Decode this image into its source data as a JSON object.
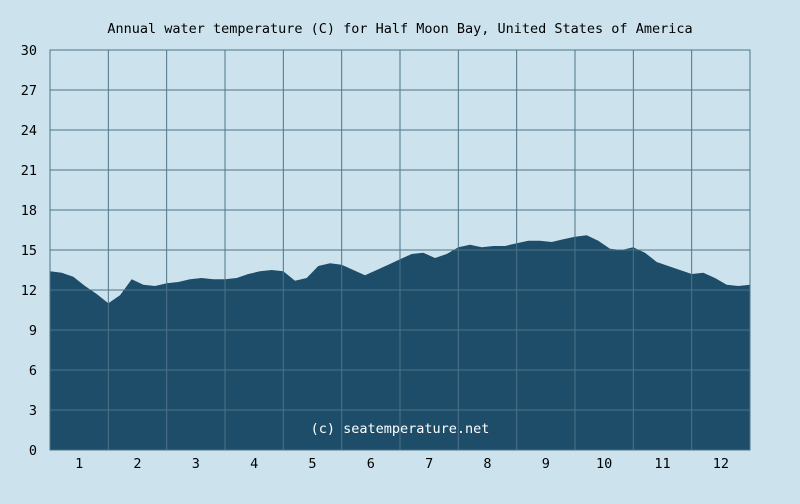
{
  "chart_data": {
    "type": "area",
    "title": "Annual water temperature (C) for Half Moon Bay, United States of America",
    "watermark": "(c) seatemperature.net",
    "xlabel": "",
    "ylabel": "",
    "ylim": [
      0,
      30
    ],
    "yticks": [
      0,
      3,
      6,
      9,
      12,
      15,
      18,
      21,
      24,
      27,
      30
    ],
    "xlim": [
      0.5,
      12.5
    ],
    "xticks": [
      1,
      2,
      3,
      4,
      5,
      6,
      7,
      8,
      9,
      10,
      11,
      12
    ],
    "xtick_labels": [
      "1",
      "2",
      "3",
      "4",
      "5",
      "6",
      "7",
      "8",
      "9",
      "10",
      "11",
      "12"
    ],
    "grid": true,
    "colors": {
      "background": "#cce3ee",
      "fill": "#1e4d69",
      "grid": "#4d7388",
      "text": "#000000",
      "watermark": "#ffffff"
    },
    "series": [
      {
        "x": [
          0.5,
          0.7,
          0.9,
          1.1,
          1.3,
          1.5,
          1.7,
          1.9,
          2.1,
          2.3,
          2.5,
          2.7,
          2.9,
          3.1,
          3.3,
          3.5,
          3.7,
          3.9,
          4.1,
          4.3,
          4.5,
          4.7,
          4.9,
          5.1,
          5.3,
          5.5,
          5.7,
          5.9,
          6.1,
          6.3,
          6.5,
          6.7,
          6.9,
          7.1,
          7.3,
          7.5,
          7.7,
          7.9,
          8.1,
          8.3,
          8.5,
          8.7,
          8.9,
          9.1,
          9.3,
          9.5,
          9.7,
          9.9,
          10.1,
          10.3,
          10.5,
          10.7,
          10.9,
          11.1,
          11.3,
          11.5,
          11.7,
          11.9,
          12.1,
          12.3,
          12.5
        ],
        "values": [
          13.4,
          13.3,
          13.0,
          12.3,
          11.7,
          11.0,
          11.6,
          12.8,
          12.4,
          12.3,
          12.5,
          12.6,
          12.8,
          12.9,
          12.8,
          12.8,
          12.9,
          13.2,
          13.4,
          13.5,
          13.4,
          12.7,
          12.9,
          13.8,
          14.0,
          13.9,
          13.5,
          13.1,
          13.5,
          13.9,
          14.3,
          14.7,
          14.8,
          14.4,
          14.7,
          15.2,
          15.4,
          15.2,
          15.3,
          15.3,
          15.5,
          15.7,
          15.7,
          15.6,
          15.8,
          16.0,
          16.1,
          15.7,
          15.1,
          15.0,
          15.2,
          14.8,
          14.1,
          13.8,
          13.5,
          13.2,
          13.3,
          12.9,
          12.4,
          12.3,
          12.4
        ]
      }
    ]
  }
}
